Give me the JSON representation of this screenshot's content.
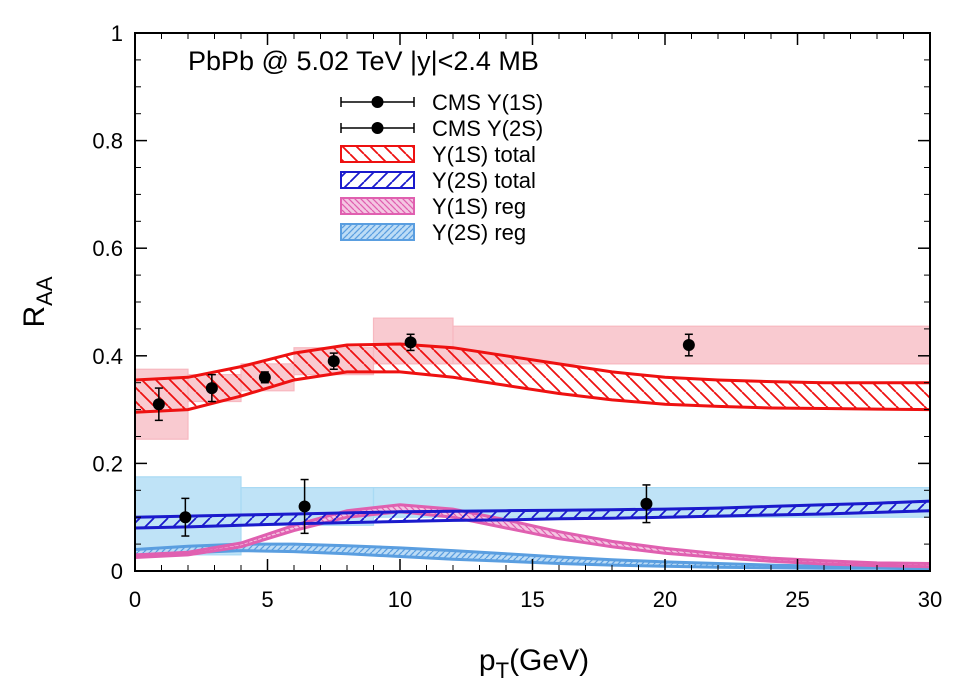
{
  "chart_data": {
    "type": "line",
    "annotation": "PbPb @ 5.02 TeV |y|<2.4 MB",
    "xlabel": "p",
    "xlabel_sub": "T",
    "xlabel_unit": "(GeV)",
    "ylabel": "R",
    "ylabel_sub": "AA",
    "xlim": [
      0,
      30
    ],
    "ylim": [
      0,
      1
    ],
    "xticks": [
      0,
      5,
      10,
      15,
      20,
      25,
      30
    ],
    "yticks": [
      0,
      0.2,
      0.4,
      0.6,
      0.8,
      1
    ],
    "ytick_labels": [
      "0",
      "0.2",
      "0.4",
      "0.6",
      "0.8",
      "1"
    ],
    "grid": false,
    "legend_position": "top-center",
    "legend": [
      {
        "label": "CMS Υ(1S)",
        "kind": "points",
        "color": "#000000"
      },
      {
        "label": "CMS Υ(2S)",
        "kind": "points",
        "color": "#000000"
      },
      {
        "label": "Υ(1S) total",
        "kind": "band",
        "color": "#ee1111",
        "fill": "rgba(255,255,255,0)",
        "hatch": "back"
      },
      {
        "label": "Υ(2S) total",
        "kind": "band",
        "color": "#1a1acc",
        "fill": "rgba(255,255,255,0)",
        "hatch": "fwd"
      },
      {
        "label": "Υ(1S) reg",
        "kind": "band",
        "color": "#e060b0",
        "fill": "#f4c6e2",
        "hatch": "back"
      },
      {
        "label": "Υ(2S) reg",
        "kind": "band",
        "color": "#5a9ee0",
        "fill": "#bcdcf6",
        "hatch": "fwd"
      }
    ],
    "systematic_boxes": [
      {
        "series": "CMS Υ(1S)",
        "color": "#f7b8c0",
        "boxes": [
          [
            0,
            2,
            0.245,
            0.375
          ],
          [
            2,
            4,
            0.315,
            0.365
          ],
          [
            4,
            6,
            0.335,
            0.385
          ],
          [
            6,
            9,
            0.365,
            0.415
          ],
          [
            9,
            12,
            0.385,
            0.47
          ],
          [
            12,
            30,
            0.385,
            0.455
          ]
        ]
      },
      {
        "series": "CMS Υ(2S)",
        "color": "#a9daf4",
        "boxes": [
          [
            0,
            4,
            0.03,
            0.175
          ],
          [
            4,
            9,
            0.085,
            0.155
          ],
          [
            9,
            30,
            0.1,
            0.155
          ]
        ]
      }
    ],
    "series": [
      {
        "name": "CMS Υ(1S)",
        "x": [
          0.9,
          2.9,
          4.9,
          7.5,
          10.4,
          20.9
        ],
        "y": [
          0.31,
          0.34,
          0.36,
          0.39,
          0.425,
          0.42
        ],
        "yerr": [
          0.03,
          0.025,
          0.01,
          0.015,
          0.015,
          0.02
        ],
        "color": "#000000"
      },
      {
        "name": "CMS Υ(2S)",
        "x": [
          1.9,
          6.4,
          19.3
        ],
        "y": [
          0.1,
          0.12,
          0.125
        ],
        "yerr": [
          0.035,
          0.05,
          0.035
        ],
        "color": "#000000"
      },
      {
        "name": "Υ(1S) total",
        "x": [
          0,
          2,
          4,
          6,
          8,
          10,
          12,
          14,
          16,
          18,
          20,
          22,
          24,
          26,
          28,
          30
        ],
        "y_low": [
          0.295,
          0.3,
          0.325,
          0.355,
          0.37,
          0.37,
          0.36,
          0.345,
          0.33,
          0.318,
          0.31,
          0.306,
          0.303,
          0.302,
          0.301,
          0.3
        ],
        "y_high": [
          0.355,
          0.36,
          0.38,
          0.405,
          0.42,
          0.422,
          0.415,
          0.4,
          0.385,
          0.37,
          0.36,
          0.355,
          0.352,
          0.35,
          0.35,
          0.35
        ],
        "color": "#ee1111"
      },
      {
        "name": "Υ(2S) total",
        "x": [
          0,
          2,
          4,
          6,
          8,
          10,
          12,
          14,
          16,
          18,
          20,
          22,
          24,
          26,
          28,
          30
        ],
        "y_low": [
          0.08,
          0.082,
          0.085,
          0.088,
          0.09,
          0.092,
          0.094,
          0.095,
          0.097,
          0.098,
          0.1,
          0.102,
          0.104,
          0.106,
          0.109,
          0.112
        ],
        "y_high": [
          0.1,
          0.102,
          0.104,
          0.106,
          0.108,
          0.11,
          0.111,
          0.112,
          0.113,
          0.114,
          0.115,
          0.117,
          0.12,
          0.123,
          0.126,
          0.13
        ],
        "color": "#1a1acc"
      },
      {
        "name": "Υ(1S) reg",
        "x": [
          0,
          2,
          4,
          6,
          8,
          10,
          12,
          14,
          16,
          18,
          20,
          22,
          24,
          26,
          28,
          30
        ],
        "y_low": [
          0.025,
          0.03,
          0.045,
          0.075,
          0.1,
          0.11,
          0.1,
          0.08,
          0.06,
          0.045,
          0.033,
          0.025,
          0.018,
          0.013,
          0.01,
          0.008
        ],
        "y_high": [
          0.03,
          0.035,
          0.052,
          0.085,
          0.112,
          0.123,
          0.115,
          0.095,
          0.073,
          0.055,
          0.042,
          0.032,
          0.024,
          0.019,
          0.015,
          0.014
        ],
        "color": "#e060b0"
      },
      {
        "name": "Υ(2S) reg",
        "x": [
          0,
          2,
          4,
          6,
          8,
          10,
          12,
          14,
          16,
          18,
          20,
          22,
          24,
          26,
          28,
          30
        ],
        "y_low": [
          0.028,
          0.034,
          0.038,
          0.036,
          0.032,
          0.027,
          0.022,
          0.018,
          0.014,
          0.011,
          0.009,
          0.007,
          0.006,
          0.005,
          0.005,
          0.004
        ],
        "y_high": [
          0.04,
          0.046,
          0.05,
          0.05,
          0.047,
          0.043,
          0.038,
          0.032,
          0.026,
          0.021,
          0.017,
          0.014,
          0.011,
          0.009,
          0.008,
          0.007
        ],
        "color": "#5a9ee0"
      }
    ]
  }
}
